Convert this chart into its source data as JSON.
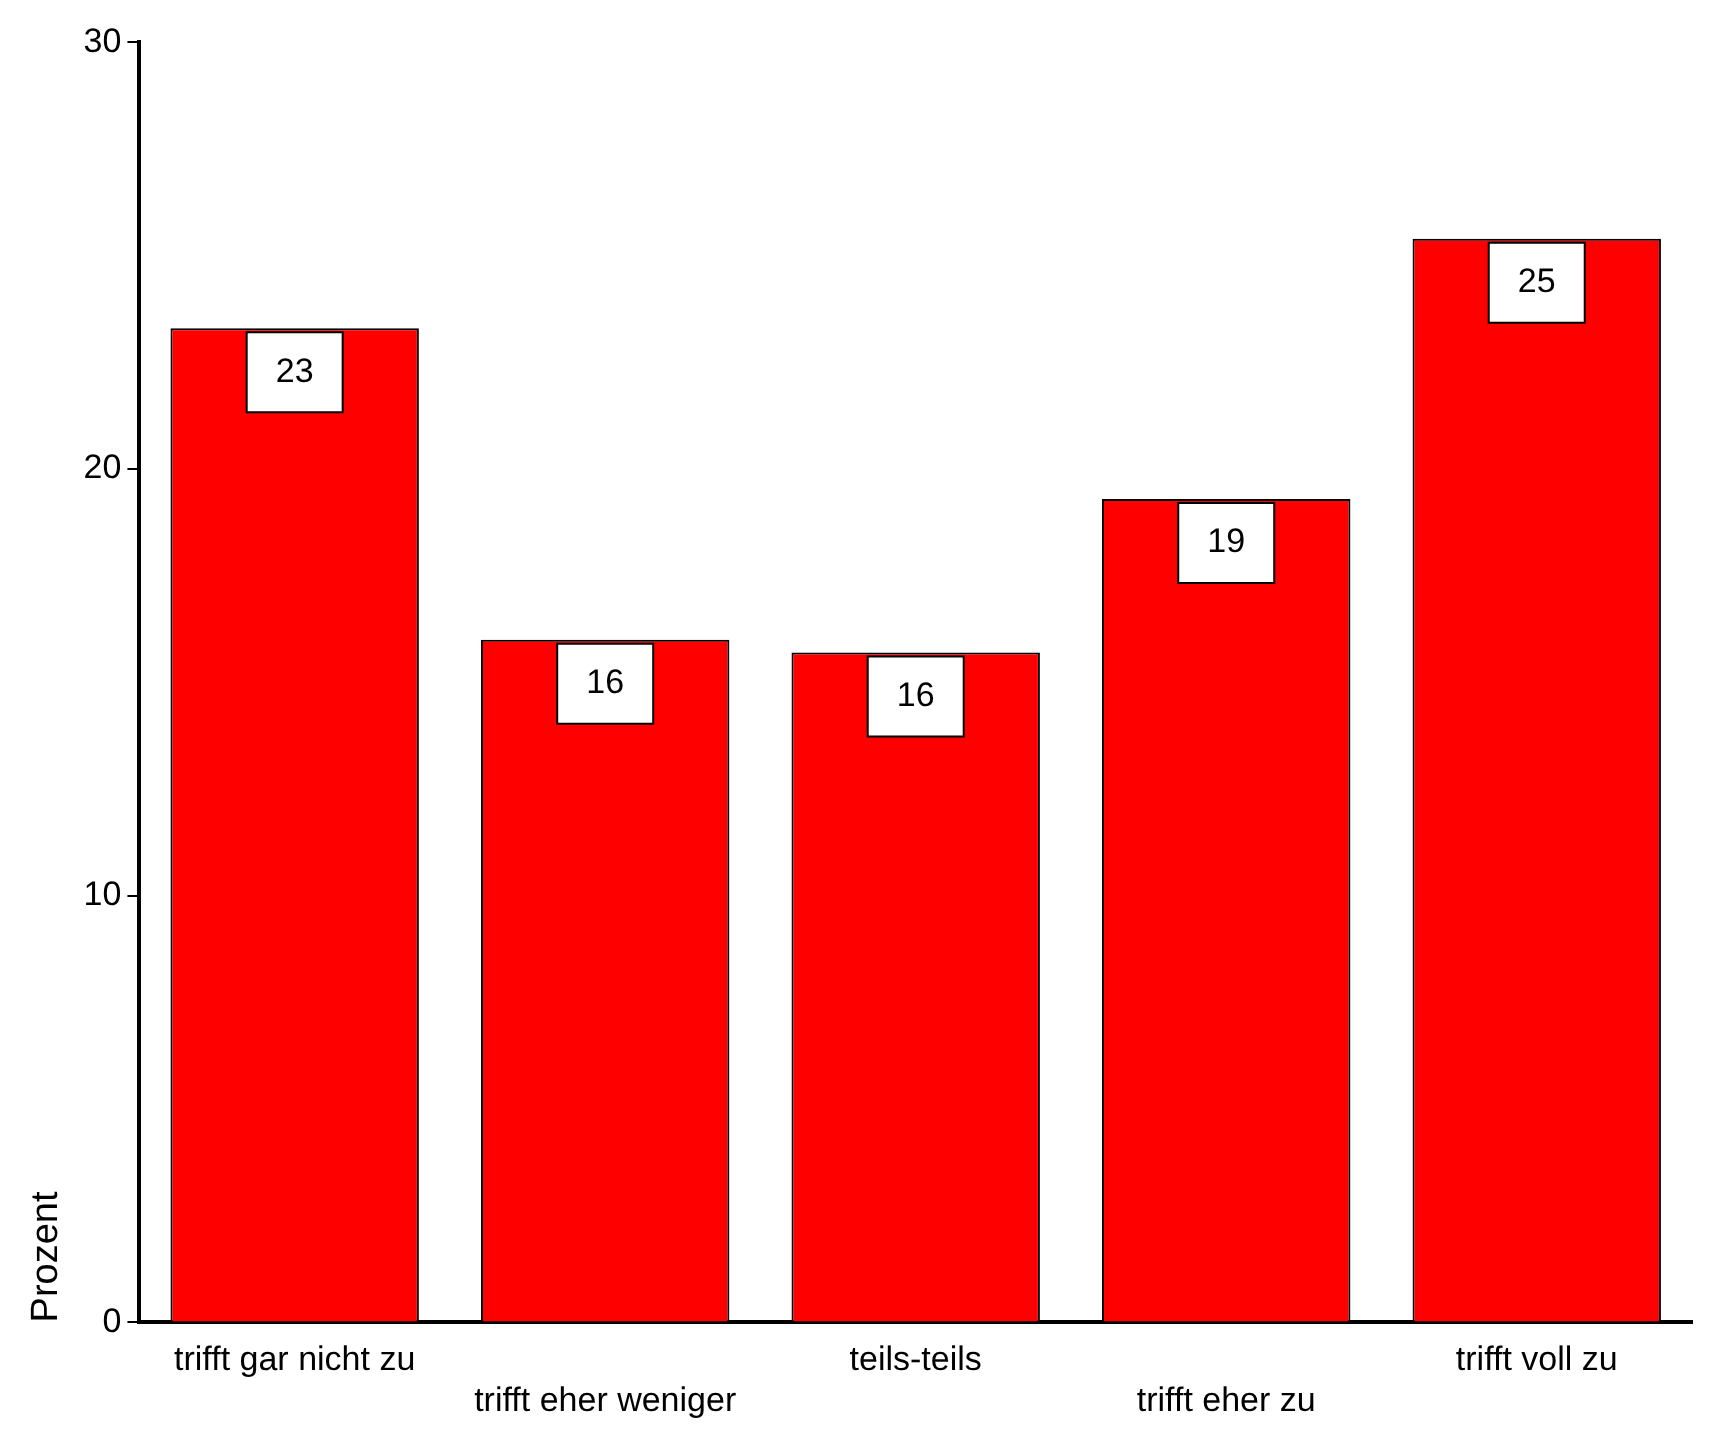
{
  "chart_data": {
    "type": "bar",
    "ylabel": "Prozent",
    "categories": [
      "trifft gar nicht zu",
      "trifft eher weniger",
      "teils-teils",
      "trifft eher zu",
      "trifft voll zu"
    ],
    "values": [
      23.3,
      16.0,
      15.7,
      19.3,
      25.4
    ],
    "value_labels": [
      "23",
      "16",
      "16",
      "19",
      "25"
    ],
    "color": "#ff0000",
    "ylim": [
      0,
      30
    ],
    "yticks": [
      0,
      10,
      20,
      30
    ],
    "grid": false,
    "legend": false
  }
}
